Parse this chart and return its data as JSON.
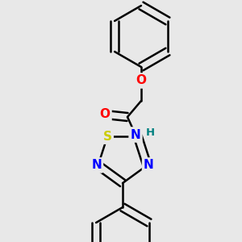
{
  "background_color": "#e8e8e8",
  "bond_color": "#000000",
  "bond_width": 1.8,
  "atom_colors": {
    "O": "#ff0000",
    "N": "#0000ff",
    "S": "#cccc00",
    "H": "#008080",
    "C": "#000000"
  },
  "font_size_atoms": 11,
  "font_size_H": 9.5
}
